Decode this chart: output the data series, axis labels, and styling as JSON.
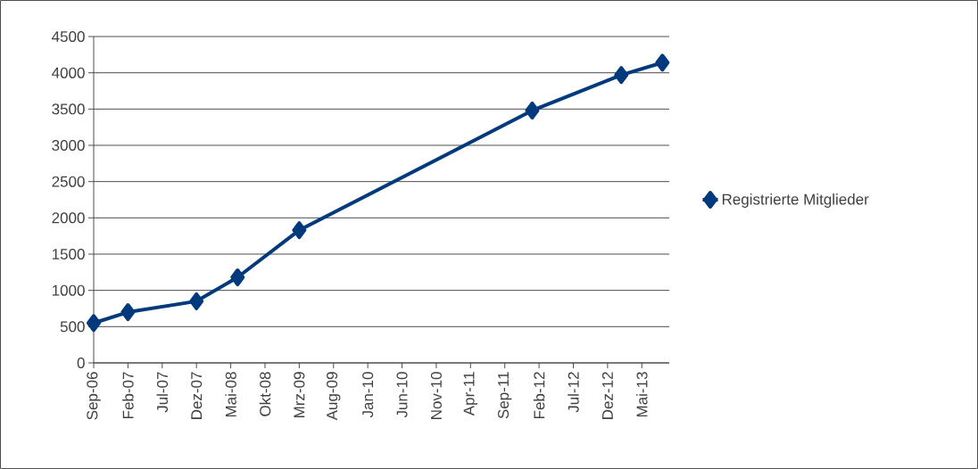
{
  "chart_data": {
    "type": "line",
    "x": [
      "2006-09",
      "2007-02",
      "2007-12",
      "2008-06",
      "2009-03",
      "2012-01",
      "2013-02",
      "2013-08"
    ],
    "series": [
      {
        "name": "Registrierte Mitglieder",
        "color": "#003a7d",
        "values": [
          550,
          700,
          850,
          1180,
          1830,
          3480,
          3970,
          4140
        ]
      }
    ],
    "xlim": [
      "2006-09",
      "2013-09"
    ],
    "xticks": [
      {
        "value": "2006-09",
        "label": "Sep-06"
      },
      {
        "value": "2007-02",
        "label": "Feb-07"
      },
      {
        "value": "2007-07",
        "label": "Jul-07"
      },
      {
        "value": "2007-12",
        "label": "Dez-07"
      },
      {
        "value": "2008-05",
        "label": "Mai-08"
      },
      {
        "value": "2008-10",
        "label": "Okt-08"
      },
      {
        "value": "2009-03",
        "label": "Mrz-09"
      },
      {
        "value": "2009-08",
        "label": "Aug-09"
      },
      {
        "value": "2010-01",
        "label": "Jan-10"
      },
      {
        "value": "2010-06",
        "label": "Jun-10"
      },
      {
        "value": "2010-11",
        "label": "Nov-10"
      },
      {
        "value": "2011-04",
        "label": "Apr-11"
      },
      {
        "value": "2011-09",
        "label": "Sep-11"
      },
      {
        "value": "2012-02",
        "label": "Feb-12"
      },
      {
        "value": "2012-07",
        "label": "Jul-12"
      },
      {
        "value": "2012-12",
        "label": "Dez-12"
      },
      {
        "value": "2013-05",
        "label": "Mai-13"
      }
    ],
    "ylim": [
      0,
      4500
    ],
    "yticks": [
      0,
      500,
      1000,
      1500,
      2000,
      2500,
      3000,
      3500,
      4000,
      4500
    ],
    "grid": "y",
    "legend": "right",
    "marker": "diamond",
    "line_style": "solid"
  }
}
